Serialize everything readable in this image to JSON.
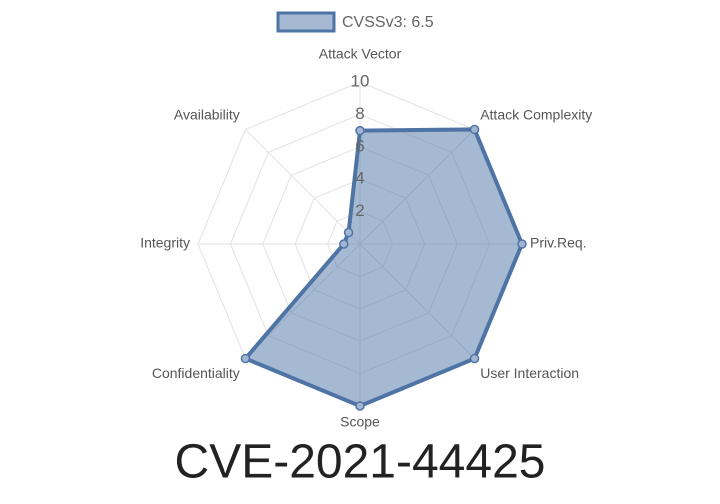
{
  "chart_data": {
    "type": "radar",
    "title": "CVE-2021-44425",
    "categories": [
      "Attack Vector",
      "Attack Complexity",
      "Priv.Req.",
      "User Interaction",
      "Scope",
      "Confidentiality",
      "Integrity",
      "Availability"
    ],
    "series": [
      {
        "name": "CVSSv3: 6.5",
        "color": "#4e74a6",
        "values": [
          7,
          10,
          10,
          10,
          10,
          10,
          1,
          1
        ]
      }
    ],
    "ylim": [
      0,
      10
    ],
    "yticks": [
      2,
      4,
      6,
      8,
      10
    ],
    "grid": true,
    "legend": "top"
  }
}
